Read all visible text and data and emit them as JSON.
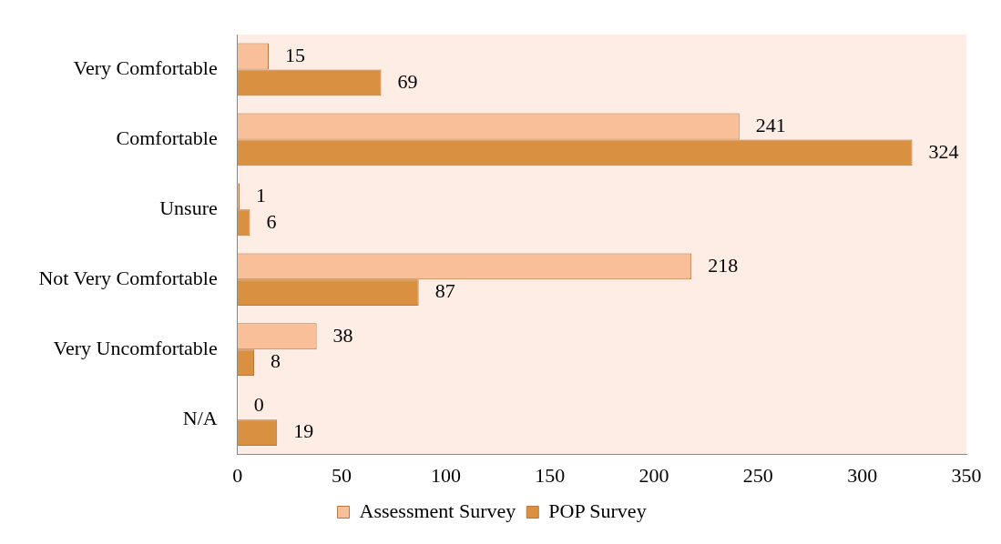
{
  "chart_data": {
    "type": "bar",
    "orientation": "horizontal",
    "categories": [
      "Very Comfortable",
      "Comfortable",
      "Unsure",
      "Not Very Comfortable",
      "Very Uncomfortable",
      "N/A"
    ],
    "series": [
      {
        "name": "Assessment Survey",
        "color": "#f8bf98",
        "values": [
          15,
          241,
          1,
          218,
          38,
          0
        ]
      },
      {
        "name": "POP Survey",
        "color": "#d99040",
        "values": [
          69,
          324,
          6,
          87,
          8,
          19
        ]
      }
    ],
    "xlim": [
      0,
      350
    ],
    "xticks": [
      0,
      50,
      100,
      150,
      200,
      250,
      300,
      350
    ],
    "data_labels": true,
    "legend": "bottom"
  }
}
